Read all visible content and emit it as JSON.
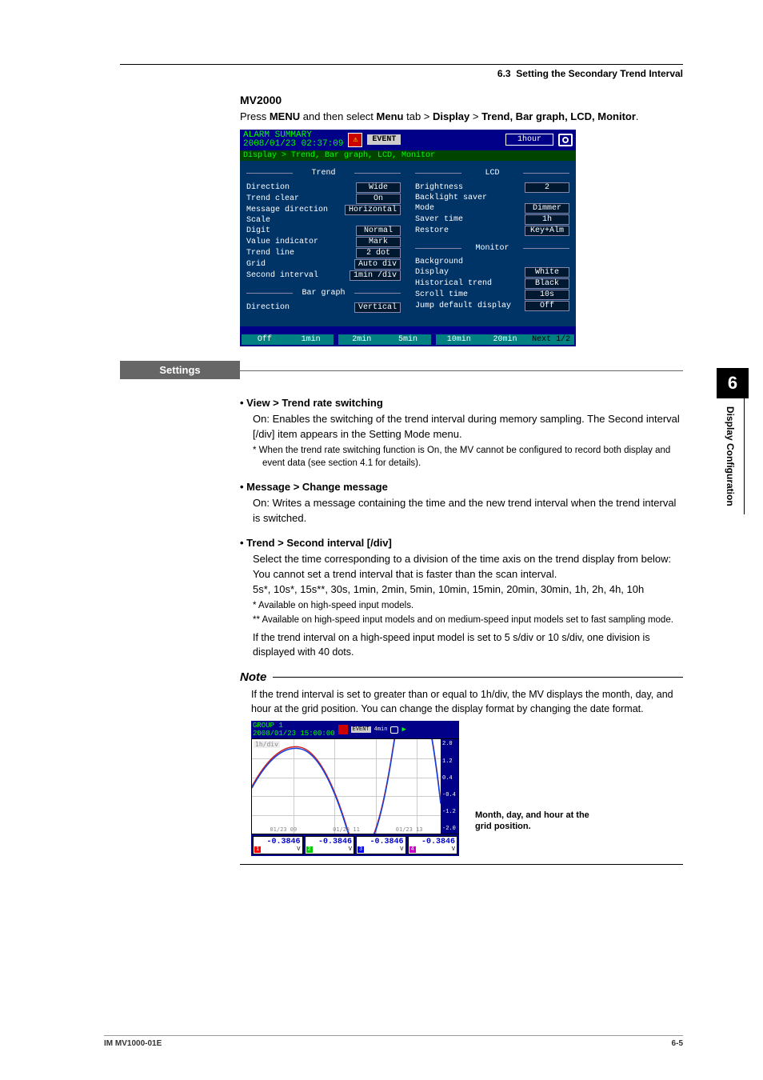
{
  "header": {
    "section_number": "6.3",
    "section_title": "Setting the Secondary Trend Interval"
  },
  "model": "MV2000",
  "instruction": {
    "prefix": "Press ",
    "menu1": "MENU",
    "mid1": " and then select ",
    "menu2": "Menu",
    "mid2": " tab > ",
    "menu3": "Display",
    "mid3": " > ",
    "menu4": "Trend, Bar graph, LCD, Monitor",
    "suffix": "."
  },
  "lcd": {
    "title_line1": "ALARM SUMMARY",
    "title_line2": "2008/01/23 02:37:09",
    "event_label": "EVENT",
    "duration": "1hour",
    "breadcrumb": "Display > Trend, Bar graph, LCD, Monitor",
    "groups": {
      "trend": {
        "label": "Trend",
        "rows": [
          {
            "k": "Direction",
            "v": "Wide"
          },
          {
            "k": "Trend clear",
            "v": "On"
          },
          {
            "k": "Message direction",
            "v": "Horizontal"
          },
          {
            "k": "Scale",
            "v": ""
          },
          {
            "k": "Digit",
            "v": "Normal"
          },
          {
            "k": "Value indicator",
            "v": "Mark"
          },
          {
            "k": "Trend line",
            "v": "2   dot"
          },
          {
            "k": "Grid",
            "v": "Auto div"
          },
          {
            "k": "Second interval",
            "v": "1min /div"
          }
        ]
      },
      "bargraph": {
        "label": "Bar graph",
        "rows": [
          {
            "k": "Direction",
            "v": "Vertical"
          }
        ]
      },
      "lcdg": {
        "label": "LCD",
        "rows": [
          {
            "k": "Brightness",
            "v": "2"
          },
          {
            "k": "Backlight saver",
            "v": ""
          },
          {
            "k": "Mode",
            "v": "Dimmer"
          },
          {
            "k": "Saver time",
            "v": "1h"
          },
          {
            "k": "Restore",
            "v": "Key+Alm"
          }
        ]
      },
      "monitor": {
        "label": "Monitor",
        "rows": [
          {
            "k": "Background",
            "v": ""
          },
          {
            "k": "Display",
            "v": "White"
          },
          {
            "k": "Historical trend",
            "v": "Black"
          },
          {
            "k": "Scroll time",
            "v": "10s"
          },
          {
            "k": "Jump default display",
            "v": "Off"
          }
        ]
      }
    },
    "buttons": [
      "Off",
      "1min",
      "2min",
      "5min",
      "10min",
      "20min",
      "Next 1/2"
    ]
  },
  "settings_label": "Settings",
  "settings": {
    "view": {
      "heading": "View > Trend rate switching",
      "body": "On: Enables the switching of the trend interval during memory sampling. The Second interval [/div] item appears in the Setting Mode menu.",
      "note": "* When the trend rate switching function is On, the MV cannot be configured to record both display and event data (see section 4.1 for details)."
    },
    "message": {
      "heading": "Message > Change message",
      "body": "On: Writes a message containing the time and the new trend interval when the trend interval is switched."
    },
    "trend": {
      "heading": "Trend > Second interval [/div]",
      "body1": "Select the time corresponding to a division of the time axis on the trend display from below: You cannot set a trend interval that is faster than the scan interval.",
      "body2": "5s*, 10s*, 15s**, 30s, 1min, 2min, 5min, 10min, 15min, 20min, 30min, 1h, 2h, 4h, 10h",
      "note1": "*   Available on high-speed input models.",
      "note2": "**  Available on high-speed input models and on medium-speed input models set to fast sampling mode.",
      "body3": "If the trend interval on a high-speed input model is set to 5 s/div or 10 s/div, one division is displayed with 40 dots."
    }
  },
  "note": {
    "heading": "Note",
    "body": "If the trend interval is set to greater than or equal to 1h/div, the MV displays the month, day, and hour at the grid position. You can change the display format by changing the date format."
  },
  "trend_shot": {
    "group": "GROUP 1",
    "timestamp": "2008/01/23 15:00:00",
    "event": "EVENT",
    "dmin": "4min",
    "ydiv": "1h/div",
    "xlabels": [
      "01/23 09",
      "01/23 11",
      "01/23 13"
    ],
    "rscale": [
      "2.0",
      "1.2",
      "0.4",
      "-0.4",
      "-1.2",
      "-2.0"
    ],
    "curve_color_1": "#d02020",
    "curve_color_2": "#1040e0",
    "grid_color": "#cccccc",
    "background_color": "#ffffff",
    "chips": [
      {
        "idx": "1",
        "val": "-0.3846",
        "unit": "V"
      },
      {
        "idx": "2",
        "val": "-0.3846",
        "unit": "V"
      },
      {
        "idx": "3",
        "val": "-0.3846",
        "unit": "V"
      },
      {
        "idx": "4",
        "val": "-0.3846",
        "unit": "V"
      }
    ],
    "annotation": "Month, day, and hour at the grid position."
  },
  "side_tab": {
    "chapter": "6",
    "title": "Display Configuration"
  },
  "footer": {
    "left": "IM MV1000-01E",
    "right": "6-5"
  }
}
